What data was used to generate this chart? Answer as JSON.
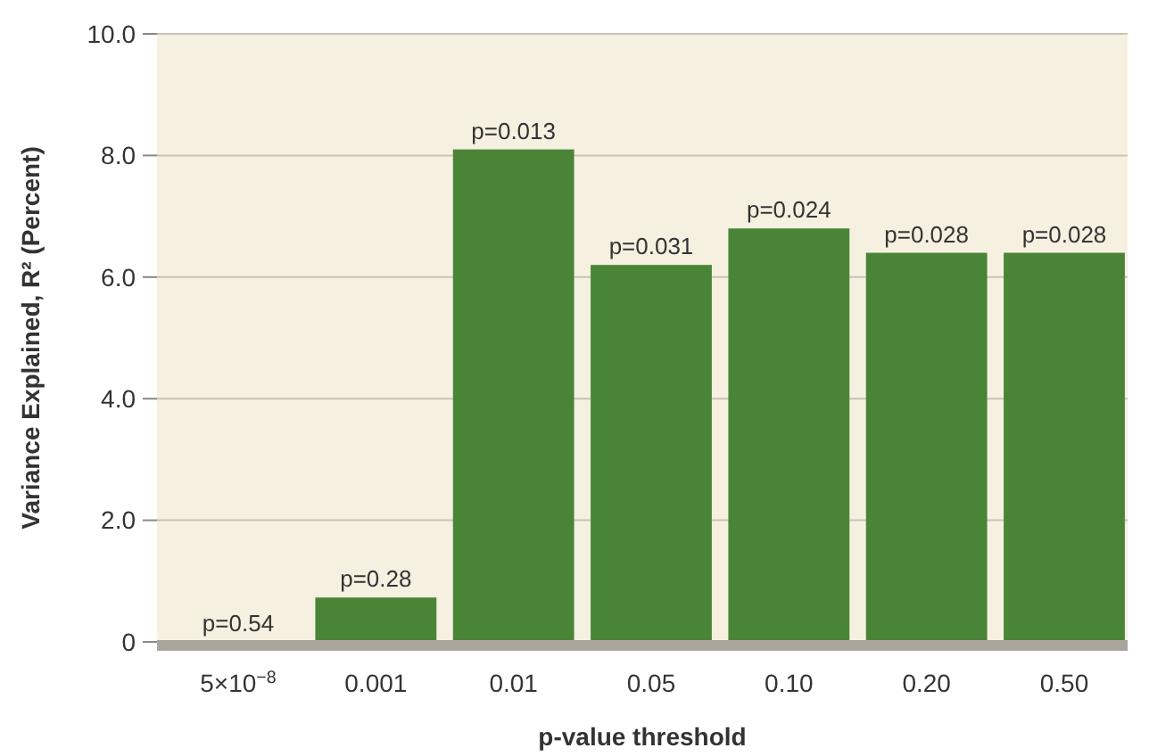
{
  "chart_data": {
    "type": "bar",
    "xlabel": "p-value threshold",
    "ylabel": "Variance Explained, R² (Percent)",
    "categories": [
      "5×10$^{−8}$",
      "0.001",
      "0.01",
      "0.05",
      "0.10",
      "0.20",
      "0.50"
    ],
    "values": [
      0,
      0.73,
      8.1,
      6.2,
      6.8,
      6.4,
      6.4
    ],
    "annotations": [
      {
        "text": "p=0.54",
        "x": "5×10$^{−8}$",
        "y": 0
      },
      {
        "text": "p=0.28",
        "x": "0.001",
        "y": 0.73
      },
      {
        "text": "p=0.013",
        "x": "0.01",
        "y": 8.1
      },
      {
        "text": "p=0.031",
        "x": "0.05",
        "y": 6.2
      },
      {
        "text": "p=0.024",
        "x": "0.10",
        "y": 6.8
      },
      {
        "text": "p=0.028",
        "x": "0.20",
        "y": 6.4
      },
      {
        "text": "p=0.028",
        "x": "0.50",
        "y": 6.4
      }
    ],
    "color": "#4a8537",
    "ylim": [
      0,
      10
    ],
    "yticks": [
      {
        "value": 0,
        "label": "0"
      },
      {
        "value": 2,
        "label": "2.0"
      },
      {
        "value": 4,
        "label": "4.0"
      },
      {
        "value": 6,
        "label": "6.0"
      },
      {
        "value": 8,
        "label": "8.0"
      },
      {
        "value": 10,
        "label": "10.0"
      }
    ],
    "grid": "y"
  }
}
